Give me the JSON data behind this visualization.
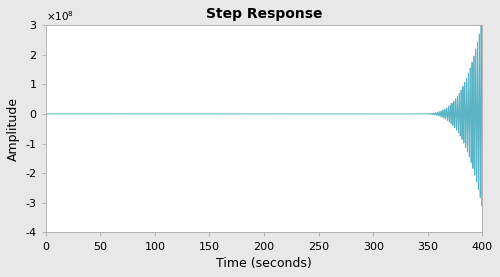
{
  "title": "Step Response",
  "xlabel": "Time (seconds)",
  "ylabel": "Amplitude",
  "xlim": [
    0,
    400
  ],
  "ylim": [
    -400000000.0,
    300000000.0
  ],
  "yticks": [
    -400000000.0,
    -300000000.0,
    -200000000.0,
    -100000000.0,
    0,
    100000000.0,
    200000000.0,
    300000000.0
  ],
  "ytick_labels": [
    "-4",
    "-3",
    "-2",
    "-1",
    "0",
    "1",
    "2",
    "3"
  ],
  "xticks": [
    0,
    50,
    100,
    150,
    200,
    250,
    300,
    350,
    400
  ],
  "line_color": "#5ab4c5",
  "bg_color": "#e8e8e8",
  "axes_bg_color": "#ffffff",
  "line_width": 0.7,
  "t_start_oscillation": 340.0,
  "t_end": 400.0,
  "osc_frequency": 0.6,
  "max_amplitude": 320000000.0,
  "growth_power": 3.5,
  "figsize": [
    5.0,
    2.77
  ],
  "dpi": 100
}
